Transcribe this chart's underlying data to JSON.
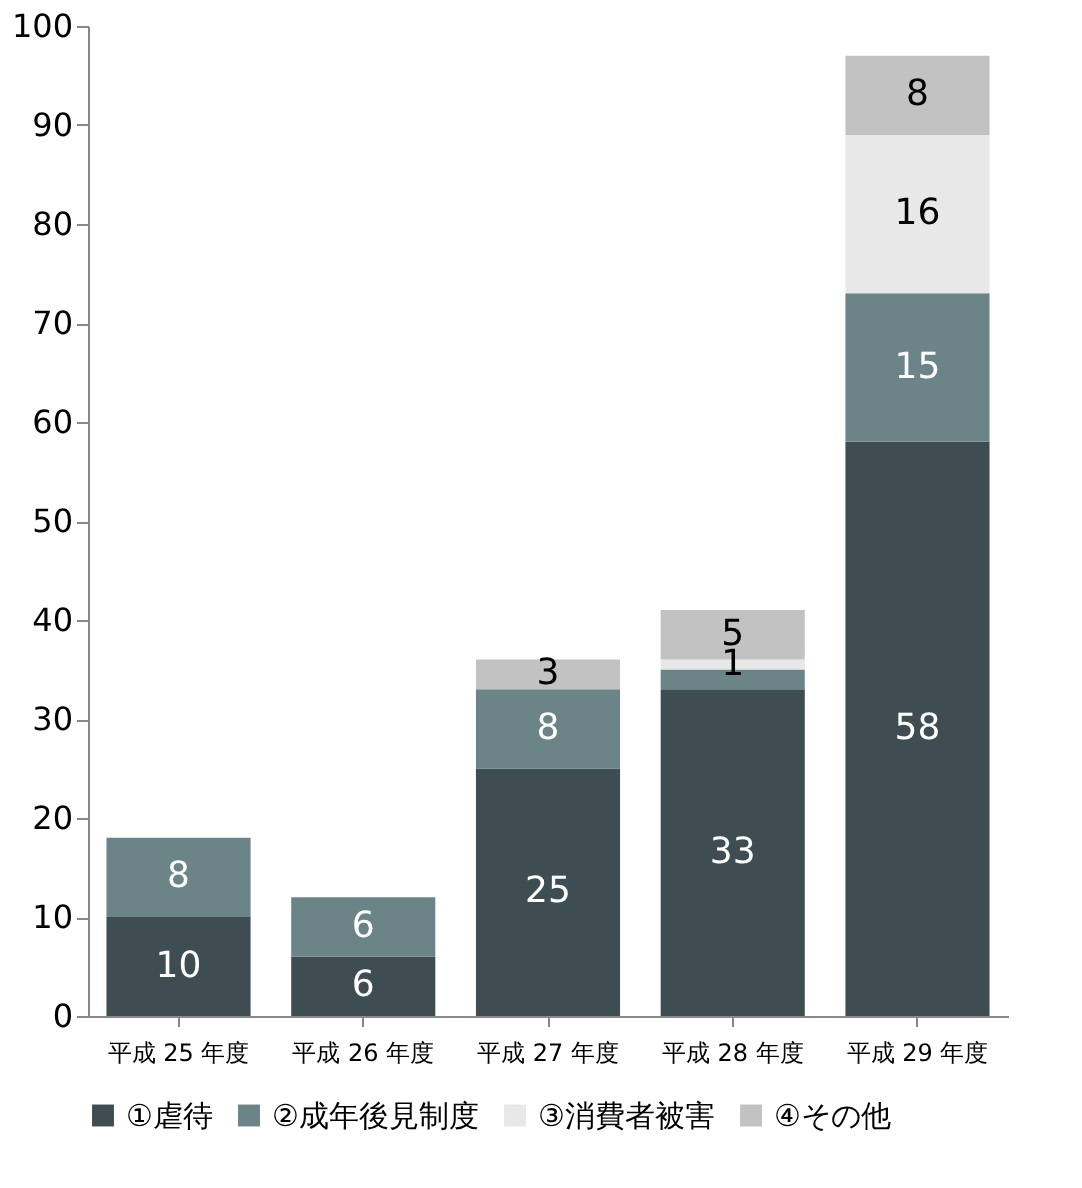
{
  "chart_data": {
    "type": "bar",
    "stacked": true,
    "categories": [
      "平成 25 年度",
      "平成 26 年度",
      "平成 27 年度",
      "平成 28 年度",
      "平成 29 年度"
    ],
    "series": [
      {
        "name": "①虐待",
        "color": "#3d4d51",
        "values": [
          10,
          6,
          25,
          33,
          58
        ],
        "value_labels": [
          "10",
          "6",
          "25",
          "33",
          "58"
        ]
      },
      {
        "name": "②成年後見制度",
        "color": "#6b8487",
        "values": [
          8,
          6,
          8,
          2,
          15
        ],
        "value_labels": [
          "8",
          "6",
          "8",
          null,
          "15"
        ]
      },
      {
        "name": "③消費者被害",
        "color": "#e8e8e8",
        "values": [
          0,
          0,
          0,
          1,
          16
        ],
        "value_labels": [
          null,
          null,
          null,
          "1",
          "16"
        ]
      },
      {
        "name": "④その他",
        "color": "#c2c2c2",
        "values": [
          0,
          0,
          3,
          5,
          8
        ],
        "value_labels": [
          null,
          null,
          "3",
          "5",
          "8"
        ]
      }
    ],
    "ylim": [
      0,
      100
    ],
    "yticks": [
      0,
      10,
      20,
      30,
      40,
      50,
      60,
      70,
      80,
      90,
      100
    ],
    "grid": false,
    "legend": "bottom"
  }
}
